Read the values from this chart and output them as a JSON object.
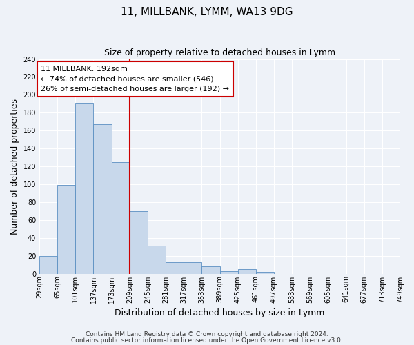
{
  "title": "11, MILLBANK, LYMM, WA13 9DG",
  "subtitle": "Size of property relative to detached houses in Lymm",
  "xlabel": "Distribution of detached houses by size in Lymm",
  "ylabel": "Number of detached properties",
  "bar_heights": [
    20,
    99,
    190,
    167,
    125,
    70,
    31,
    13,
    13,
    8,
    3,
    5,
    2,
    0,
    0,
    0,
    0,
    0,
    0,
    0
  ],
  "tick_labels": [
    "29sqm",
    "65sqm",
    "101sqm",
    "137sqm",
    "173sqm",
    "209sqm",
    "245sqm",
    "281sqm",
    "317sqm",
    "353sqm",
    "389sqm",
    "425sqm",
    "461sqm",
    "497sqm",
    "533sqm",
    "569sqm",
    "605sqm",
    "641sqm",
    "677sqm",
    "713sqm",
    "749sqm"
  ],
  "bar_color": "#c8d8eb",
  "bar_edgecolor": "#5b8fc2",
  "vline_pos": 5,
  "vline_color": "#cc0000",
  "annotation_text": "11 MILLBANK: 192sqm\n← 74% of detached houses are smaller (546)\n26% of semi-detached houses are larger (192) →",
  "annotation_box_edgecolor": "#cc0000",
  "annotation_box_facecolor": "white",
  "ylim": [
    0,
    240
  ],
  "yticks": [
    0,
    20,
    40,
    60,
    80,
    100,
    120,
    140,
    160,
    180,
    200,
    220,
    240
  ],
  "background_color": "#eef2f8",
  "grid_color": "white",
  "title_fontsize": 11,
  "subtitle_fontsize": 9,
  "axis_label_fontsize": 9,
  "tick_fontsize": 7,
  "annotation_fontsize": 8,
  "footer_fontsize": 6.5,
  "footer_line1": "Contains HM Land Registry data © Crown copyright and database right 2024.",
  "footer_line2": "Contains public sector information licensed under the Open Government Licence v3.0."
}
